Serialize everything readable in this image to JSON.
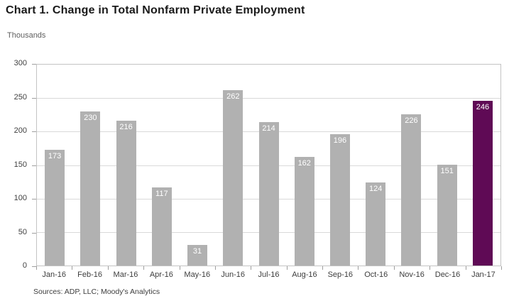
{
  "title": "Chart 1. Change in Total Nonfarm Private Employment",
  "y_axis_unit_label": "Thousands",
  "source_note": "Sources: ADP, LLC; Moody's Analytics",
  "colors": {
    "bar_default": "#b1b1b1",
    "bar_highlight": "#5f0a55",
    "value_label": "#ffffff",
    "gridline": "#d9d9d9",
    "plot_border": "#c3c3c3"
  },
  "chart_data": {
    "type": "bar",
    "title": "Chart 1. Change in Total Nonfarm Private Employment",
    "xlabel": "",
    "ylabel": "Thousands",
    "categories": [
      "Jan-16",
      "Feb-16",
      "Mar-16",
      "Apr-16",
      "May-16",
      "Jun-16",
      "Jul-16",
      "Aug-16",
      "Sep-16",
      "Oct-16",
      "Nov-16",
      "Dec-16",
      "Jan-17"
    ],
    "values": [
      173,
      230,
      216,
      117,
      31,
      262,
      214,
      162,
      196,
      124,
      226,
      151,
      246
    ],
    "highlight_index": 12,
    "ylim": [
      0,
      300
    ],
    "yticks": [
      0,
      50,
      100,
      150,
      200,
      250,
      300
    ],
    "grid": true,
    "legend": false,
    "value_labels_shown": true
  }
}
